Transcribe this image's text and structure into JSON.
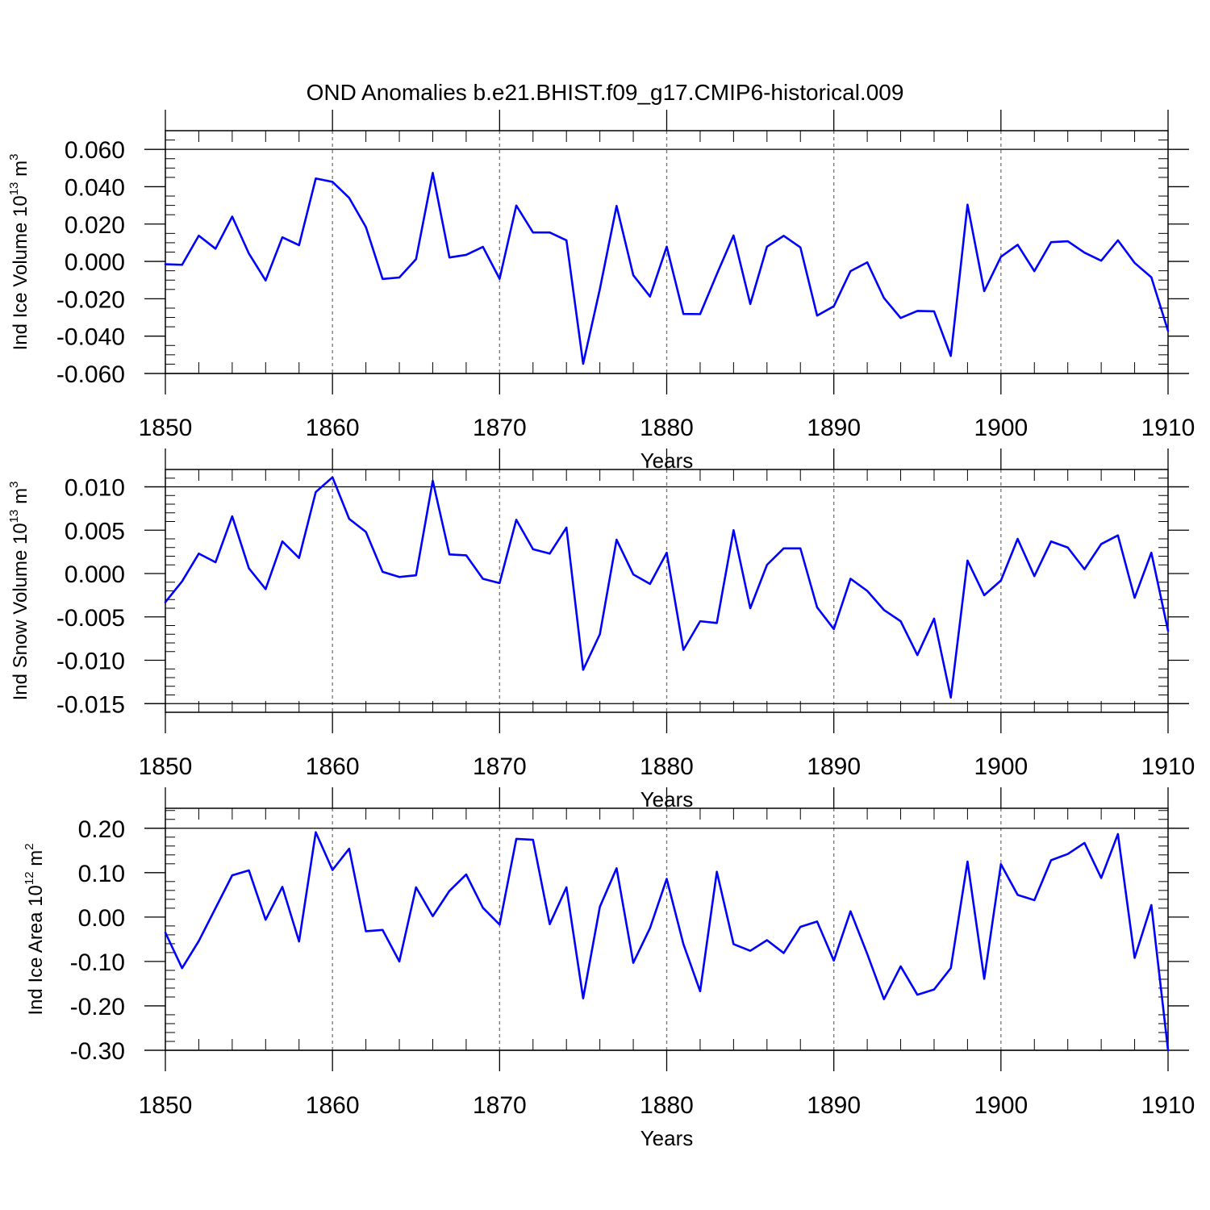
{
  "figure_title": "OND Anomalies b.e21.BHIST.f09_g17.CMIP6-historical.009",
  "line_color": "#0000ff",
  "chart_data": [
    {
      "type": "line",
      "ylabel_main": "Ind Ice Volume 10",
      "ylabel_exp": "13",
      "ylabel_unit": " m",
      "ylabel_unit_exp": "3",
      "xlabel": "Years",
      "xlim": [
        1850,
        1910
      ],
      "ylim": [
        -0.06,
        0.07
      ],
      "x_ticks": [
        1850,
        1860,
        1870,
        1880,
        1890,
        1900,
        1910
      ],
      "x_tick_labels": [
        "1850",
        "1860",
        "1870",
        "1880",
        "1890",
        "1900",
        "1910"
      ],
      "y_ticks": [
        -0.06,
        -0.04,
        -0.02,
        0.0,
        0.02,
        0.04,
        0.06
      ],
      "y_tick_labels": [
        "-0.060",
        "-0.040",
        "-0.020",
        "0.000",
        "0.020",
        "0.040",
        "0.060"
      ],
      "y_minor_step": 0.005,
      "x_grid": "dashed",
      "series": [
        {
          "name": "Ind Ice Volume",
          "x_start": 1850,
          "values": [
            -0.0015,
            -0.0018,
            0.0138,
            0.0068,
            0.024,
            0.0042,
            -0.0102,
            0.0129,
            0.0087,
            0.0444,
            0.0426,
            0.034,
            0.0184,
            -0.0094,
            -0.0086,
            0.0012,
            0.0474,
            0.0021,
            0.0035,
            0.0078,
            -0.0093,
            0.0299,
            0.0155,
            0.0155,
            0.0113,
            -0.0548,
            -0.0148,
            0.0297,
            -0.0074,
            -0.0188,
            0.0079,
            -0.0281,
            -0.0282,
            -0.0068,
            0.0139,
            -0.0228,
            0.0079,
            0.0137,
            0.0075,
            -0.029,
            -0.024,
            -0.0052,
            -0.0005,
            -0.0196,
            -0.0303,
            -0.0265,
            -0.0267,
            -0.0506,
            0.0304,
            -0.0159,
            0.0025,
            0.0089,
            -0.0052,
            0.0103,
            0.0108,
            0.0047,
            0.0004,
            0.0113,
            -0.0008,
            -0.0085,
            -0.0372
          ]
        }
      ]
    },
    {
      "type": "line",
      "ylabel_main": "Ind Snow Volume 10",
      "ylabel_exp": "13",
      "ylabel_unit": " m",
      "ylabel_unit_exp": "3",
      "xlabel": "Years",
      "xlim": [
        1850,
        1910
      ],
      "ylim": [
        -0.016,
        0.012
      ],
      "x_ticks": [
        1850,
        1860,
        1870,
        1880,
        1890,
        1900,
        1910
      ],
      "x_tick_labels": [
        "1850",
        "1860",
        "1870",
        "1880",
        "1890",
        "1900",
        "1910"
      ],
      "y_ticks": [
        -0.015,
        -0.01,
        -0.005,
        0.0,
        0.005,
        0.01
      ],
      "y_tick_labels": [
        "-0.015",
        "-0.010",
        "-0.005",
        "0.000",
        "0.005",
        "0.010"
      ],
      "y_minor_step": 0.001,
      "x_grid": "dashed",
      "series": [
        {
          "name": "Ind Snow Volume",
          "x_start": 1850,
          "values": [
            -0.0033,
            -0.0009,
            0.0023,
            0.0013,
            0.0066,
            0.0006,
            -0.0018,
            0.0037,
            0.0018,
            0.0094,
            0.0111,
            0.0063,
            0.0048,
            0.0002,
            -0.0004,
            -0.0002,
            0.0107,
            0.0022,
            0.0021,
            -0.0006,
            -0.0011,
            0.0062,
            0.0028,
            0.0023,
            0.0053,
            -0.0111,
            -0.007,
            0.0039,
            -0.0001,
            -0.0012,
            0.0024,
            -0.0088,
            -0.0055,
            -0.0057,
            0.005,
            -0.004,
            0.001,
            0.0029,
            0.0029,
            -0.0039,
            -0.0064,
            -0.0006,
            -0.002,
            -0.0042,
            -0.0055,
            -0.0094,
            -0.0052,
            -0.0143,
            0.0015,
            -0.0025,
            -0.0008,
            0.004,
            -0.0003,
            0.0037,
            0.003,
            0.0005,
            0.0034,
            0.0044,
            -0.0028,
            0.0024,
            -0.0066
          ]
        }
      ]
    },
    {
      "type": "line",
      "ylabel_main": "Ind Ice Area 10",
      "ylabel_exp": "12",
      "ylabel_unit": " m",
      "ylabel_unit_exp": "2",
      "xlabel": "Years",
      "xlim": [
        1850,
        1910
      ],
      "ylim": [
        -0.3,
        0.245
      ],
      "x_ticks": [
        1850,
        1860,
        1870,
        1880,
        1890,
        1900,
        1910
      ],
      "x_tick_labels": [
        "1850",
        "1860",
        "1870",
        "1880",
        "1890",
        "1900",
        "1910"
      ],
      "y_ticks": [
        -0.3,
        -0.2,
        -0.1,
        0.0,
        0.1,
        0.2
      ],
      "y_tick_labels": [
        "-0.30",
        "-0.20",
        "-0.10",
        "0.00",
        "0.10",
        "0.20"
      ],
      "y_minor_step": 0.02,
      "x_grid": "dashed",
      "series": [
        {
          "name": "Ind Ice Area",
          "x_start": 1850,
          "values": [
            -0.035,
            -0.115,
            -0.054,
            0.02,
            0.094,
            0.105,
            -0.006,
            0.068,
            -0.055,
            0.191,
            0.106,
            0.154,
            -0.032,
            -0.029,
            -0.1,
            0.067,
            0.002,
            0.059,
            0.096,
            0.021,
            -0.017,
            0.176,
            0.174,
            -0.016,
            0.067,
            -0.183,
            0.023,
            0.11,
            -0.103,
            -0.025,
            0.086,
            -0.061,
            -0.167,
            0.102,
            -0.061,
            -0.076,
            -0.052,
            -0.081,
            -0.022,
            -0.01,
            -0.098,
            0.013,
            -0.083,
            -0.185,
            -0.111,
            -0.175,
            -0.163,
            -0.115,
            0.125,
            -0.139,
            0.119,
            0.05,
            0.038,
            0.128,
            0.142,
            0.167,
            0.088,
            0.187,
            -0.092,
            0.027,
            -0.3
          ]
        }
      ]
    }
  ]
}
